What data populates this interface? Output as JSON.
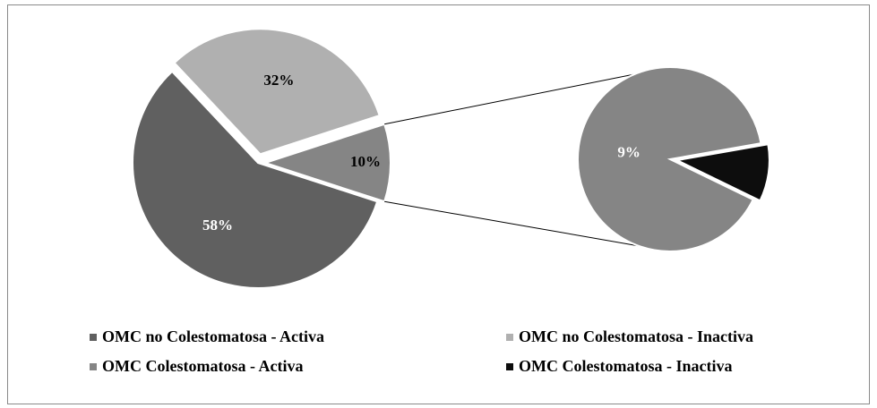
{
  "chart_data": {
    "type": "pie",
    "legend": "bottom",
    "categories": [
      "OMC no Colestomatosa - Activa",
      "OMC no Colestomatosa - Inactiva",
      "OMC Colestomatosa - Activa",
      "OMC Colestomatosa - Inactiva"
    ],
    "colors": [
      "#606060",
      "#b0b0b0",
      "#858585",
      "#0d0d0d"
    ],
    "main": {
      "values": [
        58,
        32,
        10
      ],
      "value_labels": [
        "58%",
        "32%",
        "10%"
      ]
    },
    "secondary": {
      "values": [
        9,
        1
      ],
      "value_labels": [
        "9%",
        null
      ]
    }
  }
}
